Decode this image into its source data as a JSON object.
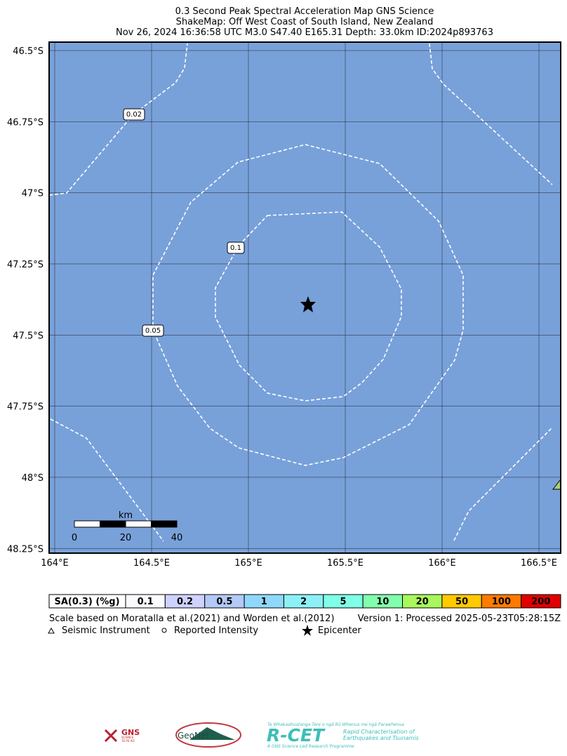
{
  "header": {
    "title": "0.3 Second Peak Spectral Acceleration Map GNS Science",
    "subtitle": "ShakeMap: Off West Coast of South Island, New Zealand",
    "event": "Nov 26, 2024 16:36:58 UTC M3.0 S47.40 E165.31 Depth: 33.0km ID:2024p893763"
  },
  "map": {
    "lon_ticks": [
      {
        "value": 164,
        "label": "164°E"
      },
      {
        "value": 164.5,
        "label": "164.5°E"
      },
      {
        "value": 165,
        "label": "165°E"
      },
      {
        "value": 165.5,
        "label": "165.5°E"
      },
      {
        "value": 166,
        "label": "166°E"
      },
      {
        "value": 166.5,
        "label": "166.5°E"
      }
    ],
    "lat_ticks": [
      {
        "value": -46.5,
        "label": "46.5°S"
      },
      {
        "value": -46.75,
        "label": "46.75°S"
      },
      {
        "value": -47,
        "label": "47°S"
      },
      {
        "value": -47.25,
        "label": "47.25°S"
      },
      {
        "value": -47.5,
        "label": "47.5°S"
      },
      {
        "value": -47.75,
        "label": "47.75°S"
      },
      {
        "value": -48,
        "label": "48°S"
      },
      {
        "value": -48.25,
        "label": "48.25°S"
      }
    ],
    "contour_labels": [
      "0.02",
      "0.1",
      "0.05"
    ],
    "scale_bar": {
      "unit": "km",
      "labels": [
        "0",
        "20",
        "40"
      ]
    }
  },
  "legend": {
    "title": "SA(0.3) (%g)",
    "bins": [
      {
        "label": "0.1",
        "color": "#fafaff"
      },
      {
        "label": "0.2",
        "color": "#cfd2ff"
      },
      {
        "label": "0.5",
        "color": "#b3c9f7"
      },
      {
        "label": "1",
        "color": "#8fd8fb"
      },
      {
        "label": "2",
        "color": "#8cf0f6"
      },
      {
        "label": "5",
        "color": "#80ffe6"
      },
      {
        "label": "10",
        "color": "#82ffad"
      },
      {
        "label": "20",
        "color": "#a9f75c"
      },
      {
        "label": "50",
        "color": "#ffc900"
      },
      {
        "label": "100",
        "color": "#ff7a00"
      },
      {
        "label": "200",
        "color": "#e00000"
      }
    ],
    "reference": "Scale based on Moratalla et al.(2021) and Worden et al.(2012)",
    "version": "Version 1: Processed 2025-05-23T05:28:15Z",
    "symbols": [
      "Seismic Instrument",
      "Reported Intensity",
      "Epicenter"
    ]
  },
  "logos": {
    "gns": [
      "GNS",
      "SCIENCE",
      "TE PŪ AO"
    ],
    "geonet": "GeoNet",
    "rcet": {
      "tagline": "Te Whakaahuatanga Tere o ngā Rū Whenua me ngā Parawhenua",
      "name": "R-CET",
      "line1": "Rapid Characterisation of",
      "line2": "Earthquakes and Tsunamis",
      "footer": "A GNS Science Led Research Programme"
    }
  }
}
